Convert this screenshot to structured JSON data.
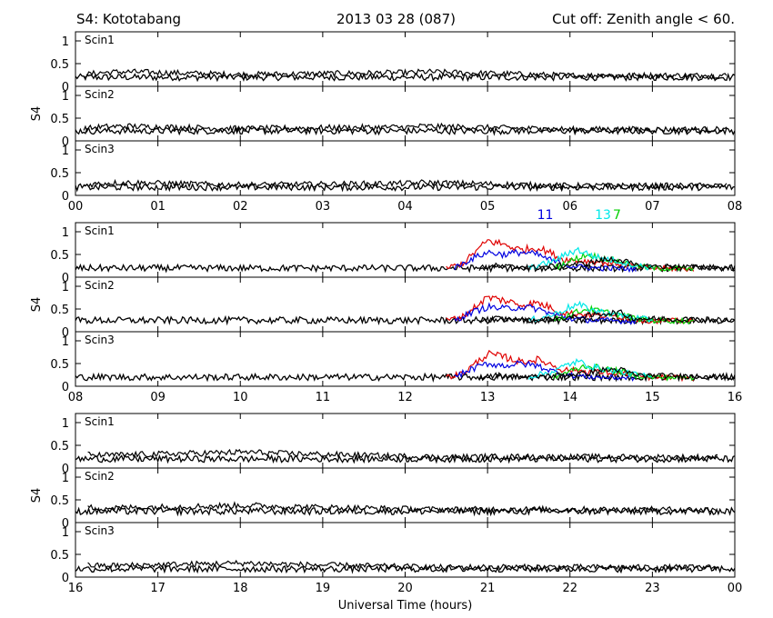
{
  "header": {
    "station": "S4: Kototabang",
    "date": "2013 03 28 (087)",
    "cutoff": "Cut off: Zenith angle < 60."
  },
  "colors": {
    "red": "#e00000",
    "blue": "#0000e0",
    "green": "#00d000",
    "cyan": "#00e8e8",
    "black": "#000000"
  },
  "chart_data": {
    "type": "line",
    "ylabel": "S4",
    "xlabel": "Universal Time (hours)",
    "ylim": [
      0,
      1.2
    ],
    "yticks": [
      "0",
      "0.5",
      "1"
    ],
    "channels": [
      "Scin1",
      "Scin2",
      "Scin3"
    ],
    "blocks": [
      {
        "xticks": [
          "00",
          "01",
          "02",
          "03",
          "04",
          "05",
          "06",
          "07",
          "08"
        ],
        "xrange": [
          0,
          8
        ],
        "baseline": {
          "Scin1": 0.2,
          "Scin2": 0.22,
          "Scin3": 0.18
        },
        "series": [
          {
            "color": "black",
            "points": [
              [
                0.1,
                0.25
              ],
              [
                0.3,
                0.3
              ],
              [
                0.6,
                0.32
              ],
              [
                2.0,
                0.26
              ],
              [
                4.1,
                0.3
              ],
              [
                4.2,
                0.32
              ],
              [
                6.0,
                0.24
              ],
              [
                7.9,
                0.24
              ]
            ]
          }
        ],
        "prn_labels": []
      },
      {
        "xticks": [
          "08",
          "09",
          "10",
          "11",
          "12",
          "13",
          "14",
          "15",
          "16"
        ],
        "xrange": [
          8,
          16
        ],
        "baseline": {
          "Scin1": 0.2,
          "Scin2": 0.25,
          "Scin3": 0.2
        },
        "series": [
          {
            "color": "red",
            "points": [
              [
                12.5,
                0.2
              ],
              [
                12.7,
                0.3
              ],
              [
                12.85,
                0.55
              ],
              [
                13.0,
                0.8
              ],
              [
                13.2,
                0.72
              ],
              [
                13.4,
                0.6
              ],
              [
                13.6,
                0.65
              ],
              [
                13.75,
                0.55
              ],
              [
                13.9,
                0.4
              ],
              [
                14.2,
                0.35
              ],
              [
                14.6,
                0.3
              ],
              [
                14.9,
                0.2
              ],
              [
                15.5,
                0.18
              ]
            ]
          },
          {
            "color": "blue",
            "points": [
              [
                12.6,
                0.2
              ],
              [
                12.8,
                0.4
              ],
              [
                13.0,
                0.55
              ],
              [
                13.2,
                0.5
              ],
              [
                13.4,
                0.55
              ],
              [
                13.6,
                0.5
              ],
              [
                13.8,
                0.35
              ],
              [
                14.0,
                0.25
              ],
              [
                14.3,
                0.2
              ],
              [
                14.8,
                0.18
              ]
            ]
          },
          {
            "color": "green",
            "points": [
              [
                13.8,
                0.2
              ],
              [
                14.0,
                0.35
              ],
              [
                14.2,
                0.5
              ],
              [
                14.4,
                0.42
              ],
              [
                14.6,
                0.35
              ],
              [
                14.8,
                0.25
              ],
              [
                15.0,
                0.2
              ],
              [
                15.5,
                0.18
              ]
            ]
          },
          {
            "color": "cyan",
            "points": [
              [
                13.5,
                0.2
              ],
              [
                13.8,
                0.35
              ],
              [
                14.0,
                0.55
              ],
              [
                14.1,
                0.6
              ],
              [
                14.3,
                0.45
              ],
              [
                14.5,
                0.38
              ],
              [
                14.7,
                0.3
              ],
              [
                15.0,
                0.2
              ]
            ]
          },
          {
            "color": "black",
            "points": [
              [
                12.9,
                0.2
              ],
              [
                13.1,
                0.25
              ],
              [
                13.5,
                0.2
              ],
              [
                14.2,
                0.3
              ],
              [
                14.4,
                0.38
              ],
              [
                14.6,
                0.4
              ],
              [
                14.8,
                0.25
              ],
              [
                16.0,
                0.2
              ]
            ]
          }
        ],
        "prn_labels": [
          {
            "text": "11",
            "color": "blue",
            "x": 13.7
          },
          {
            "text": "13",
            "color": "cyan",
            "x": 14.4
          },
          {
            "text": "7",
            "color": "green",
            "x": 14.57
          }
        ]
      },
      {
        "xticks": [
          "16",
          "17",
          "18",
          "19",
          "20",
          "21",
          "22",
          "23",
          "00"
        ],
        "xrange": [
          16,
          24
        ],
        "baseline": {
          "Scin1": 0.2,
          "Scin2": 0.25,
          "Scin3": 0.18
        },
        "series": [
          {
            "color": "black",
            "points": [
              [
                16.15,
                0.3
              ],
              [
                16.3,
                0.28
              ],
              [
                18.1,
                0.35
              ],
              [
                18.5,
                0.32
              ],
              [
                20.5,
                0.24
              ],
              [
                21.0,
                0.25
              ],
              [
                23.8,
                0.24
              ]
            ]
          }
        ],
        "prn_labels": []
      }
    ]
  }
}
